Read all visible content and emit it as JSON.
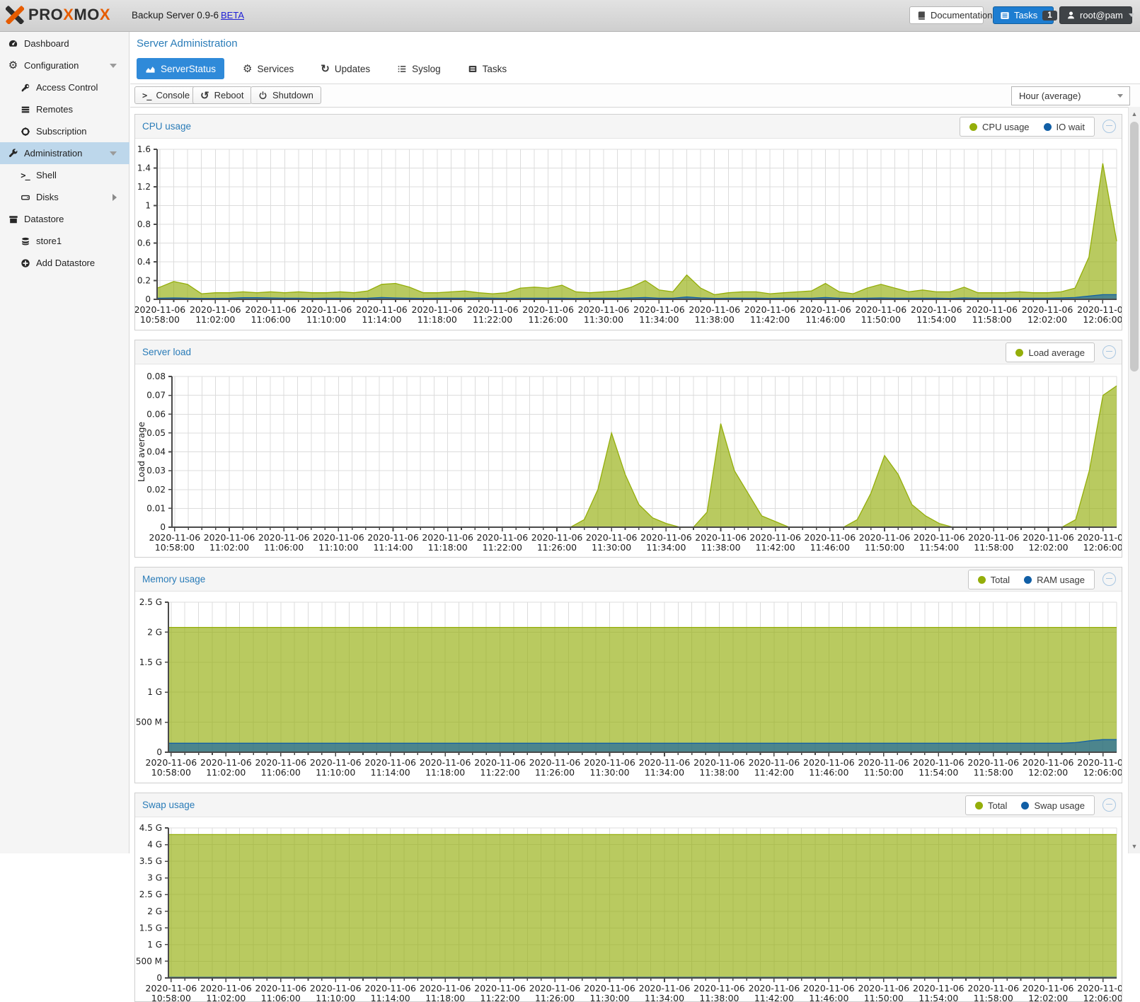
{
  "header": {
    "brand": "PROXMOX",
    "product": "Backup Server 0.9-6",
    "beta_link": "BETA",
    "documentation_label": "Documentation",
    "tasks_label": "Tasks",
    "tasks_badge": "1",
    "user_label": "root@pam"
  },
  "sidebar": {
    "items": [
      {
        "label": "Dashboard",
        "icon": "dashboard-icon",
        "level": 0
      },
      {
        "label": "Configuration",
        "icon": "gear-icon",
        "level": 0,
        "expand": "down"
      },
      {
        "label": "Access Control",
        "icon": "key-icon",
        "level": 1
      },
      {
        "label": "Remotes",
        "icon": "remotes-icon",
        "level": 1
      },
      {
        "label": "Subscription",
        "icon": "lifering-icon",
        "level": 1
      },
      {
        "label": "Administration",
        "icon": "wrench-icon",
        "level": 0,
        "expand": "down",
        "selected": true
      },
      {
        "label": "Shell",
        "icon": "terminal-icon",
        "level": 1
      },
      {
        "label": "Disks",
        "icon": "harddisk-icon",
        "level": 1,
        "expand": "right"
      },
      {
        "label": "Datastore",
        "icon": "archive-icon",
        "level": 0
      },
      {
        "label": "store1",
        "icon": "database-icon",
        "level": 1
      },
      {
        "label": "Add Datastore",
        "icon": "plus-circle-icon",
        "level": 1
      }
    ]
  },
  "main": {
    "title": "Server Administration",
    "tabs": [
      {
        "label": "ServerStatus",
        "icon": "area-chart-icon",
        "active": true
      },
      {
        "label": "Services",
        "icon": "gear-icon"
      },
      {
        "label": "Updates",
        "icon": "refresh-icon"
      },
      {
        "label": "Syslog",
        "icon": "list-icon"
      },
      {
        "label": "Tasks",
        "icon": "tasks-icon"
      }
    ],
    "toolbar": {
      "console_label": "Console",
      "reboot_label": "Reboot",
      "shutdown_label": "Shutdown",
      "range_selected": "Hour (average)"
    }
  },
  "panels": [
    {
      "title": "CPU usage",
      "legend": [
        {
          "label": "CPU usage",
          "color": "#94ae0a"
        },
        {
          "label": "IO wait",
          "color": "#115fa6"
        }
      ]
    },
    {
      "title": "Server load",
      "legend": [
        {
          "label": "Load average",
          "color": "#94ae0a"
        }
      ]
    },
    {
      "title": "Memory usage",
      "legend": [
        {
          "label": "Total",
          "color": "#94ae0a"
        },
        {
          "label": "RAM usage",
          "color": "#115fa6"
        }
      ]
    },
    {
      "title": "Swap usage",
      "legend": [
        {
          "label": "Total",
          "color": "#94ae0a"
        },
        {
          "label": "Swap usage",
          "color": "#115fa6"
        }
      ]
    }
  ],
  "colors": {
    "series_green": "#94ae0a",
    "series_blue": "#115fa6",
    "title_blue": "#2a7cb8",
    "active_tab_blue": "#2f8ad9",
    "tasks_button_blue": "#1d7dd1",
    "selected_row_blue": "#bdd7eb",
    "brand_orange": "#e65c00"
  },
  "chart_data": [
    {
      "type": "area",
      "title": "CPU usage",
      "ylim": [
        0,
        1.6
      ],
      "ytick_values": [
        0,
        0.2,
        0.4,
        0.6,
        0.8,
        1,
        1.2,
        1.4,
        1.6
      ],
      "ytick_labels": [
        "0",
        "0.2",
        "0.4",
        "0.6",
        "0.8",
        "1",
        "1.2",
        "1.4",
        "1.6"
      ],
      "time_axis": {
        "date": "2020-11-06",
        "start": "10:57",
        "step_minutes": 1,
        "points": 71
      },
      "xtick_labels": [
        "10:58:00",
        "11:02:00",
        "11:06:00",
        "11:10:00",
        "11:14:00",
        "11:18:00",
        "11:22:00",
        "11:26:00",
        "11:30:00",
        "11:34:00",
        "11:38:00",
        "11:42:00",
        "11:46:00",
        "11:50:00",
        "11:54:00",
        "11:58:00",
        "12:02:00",
        "12:06:00"
      ],
      "series": [
        {
          "name": "CPU usage",
          "color": "#94ae0a",
          "values": [
            0.12,
            0.13,
            0.19,
            0.16,
            0.06,
            0.07,
            0.07,
            0.08,
            0.07,
            0.08,
            0.07,
            0.08,
            0.07,
            0.07,
            0.08,
            0.07,
            0.09,
            0.16,
            0.17,
            0.13,
            0.07,
            0.07,
            0.08,
            0.09,
            0.07,
            0.06,
            0.07,
            0.12,
            0.13,
            0.12,
            0.15,
            0.08,
            0.07,
            0.08,
            0.09,
            0.13,
            0.2,
            0.1,
            0.08,
            0.26,
            0.12,
            0.05,
            0.07,
            0.08,
            0.08,
            0.06,
            0.07,
            0.08,
            0.09,
            0.17,
            0.08,
            0.06,
            0.12,
            0.16,
            0.12,
            0.08,
            0.1,
            0.08,
            0.08,
            0.13,
            0.07,
            0.07,
            0.07,
            0.08,
            0.07,
            0.07,
            0.08,
            0.12,
            0.45,
            1.45,
            0.62
          ]
        },
        {
          "name": "IO wait",
          "color": "#115fa6",
          "values": [
            0.012,
            0.012,
            0.015,
            0.012,
            0.01,
            0.01,
            0.012,
            0.018,
            0.018,
            0.015,
            0.012,
            0.012,
            0.01,
            0.012,
            0.012,
            0.01,
            0.012,
            0.02,
            0.015,
            0.012,
            0.01,
            0.012,
            0.012,
            0.012,
            0.015,
            0.012,
            0.01,
            0.012,
            0.012,
            0.012,
            0.012,
            0.01,
            0.012,
            0.012,
            0.012,
            0.015,
            0.02,
            0.012,
            0.012,
            0.025,
            0.015,
            0.01,
            0.012,
            0.012,
            0.012,
            0.01,
            0.012,
            0.012,
            0.012,
            0.02,
            0.012,
            0.01,
            0.012,
            0.015,
            0.012,
            0.012,
            0.012,
            0.012,
            0.01,
            0.015,
            0.012,
            0.012,
            0.012,
            0.012,
            0.012,
            0.012,
            0.015,
            0.02,
            0.035,
            0.05,
            0.05
          ]
        }
      ]
    },
    {
      "type": "area",
      "title": "Server load",
      "ylabel": "Load average",
      "ylim": [
        0,
        0.08
      ],
      "ytick_values": [
        0,
        0.01,
        0.02,
        0.03,
        0.04,
        0.05,
        0.06,
        0.07,
        0.08
      ],
      "ytick_labels": [
        "0",
        "0.01",
        "0.02",
        "0.03",
        "0.04",
        "0.05",
        "0.06",
        "0.07",
        "0.08"
      ],
      "time_axis": {
        "date": "2020-11-06",
        "start": "10:57",
        "step_minutes": 1,
        "points": 71
      },
      "xtick_labels": [
        "10:58:00",
        "11:02:00",
        "11:06:00",
        "11:10:00",
        "11:14:00",
        "11:18:00",
        "11:22:00",
        "11:26:00",
        "11:30:00",
        "11:34:00",
        "11:38:00",
        "11:42:00",
        "11:46:00",
        "11:50:00",
        "11:54:00",
        "11:58:00",
        "12:02:00",
        "12:06:00"
      ],
      "series": [
        {
          "name": "Load average",
          "color": "#94ae0a",
          "values": [
            0,
            0,
            0,
            0,
            0,
            0,
            0,
            0,
            0,
            0,
            0,
            0,
            0,
            0,
            0,
            0,
            0,
            0,
            0,
            0,
            0,
            0,
            0,
            0,
            0,
            0,
            0,
            0,
            0,
            0,
            0,
            0.004,
            0.02,
            0.05,
            0.028,
            0.012,
            0.005,
            0.002,
            0,
            0,
            0.008,
            0.055,
            0.03,
            0.018,
            0.006,
            0.003,
            0,
            0,
            0,
            0,
            0,
            0.004,
            0.018,
            0.038,
            0.028,
            0.012,
            0.006,
            0.002,
            0,
            0,
            0,
            0,
            0,
            0,
            0,
            0,
            0,
            0.004,
            0.03,
            0.07,
            0.075
          ]
        }
      ]
    },
    {
      "type": "area",
      "title": "Memory usage",
      "unit": "GiB",
      "ylim": [
        0,
        2.5
      ],
      "ytick_values": [
        0,
        0.5,
        1,
        1.5,
        2,
        2.5
      ],
      "ytick_labels": [
        "0",
        "500 M",
        "1 G",
        "1.5 G",
        "2 G",
        "2.5 G"
      ],
      "time_axis": {
        "date": "2020-11-06",
        "start": "10:57",
        "step_minutes": 1,
        "points": 71
      },
      "xtick_labels": [
        "10:58:00",
        "11:02:00",
        "11:06:00",
        "11:10:00",
        "11:14:00",
        "11:18:00",
        "11:22:00",
        "11:26:00",
        "11:30:00",
        "11:34:00",
        "11:38:00",
        "11:42:00",
        "11:46:00",
        "11:50:00",
        "11:54:00",
        "11:58:00",
        "12:02:00",
        "12:06:00"
      ],
      "series": [
        {
          "name": "Total",
          "color": "#94ae0a",
          "constant": 2.08
        },
        {
          "name": "RAM usage",
          "color": "#115fa6",
          "base": 0.15,
          "tail": [
            0.16,
            0.19,
            0.21,
            0.21
          ]
        }
      ]
    },
    {
      "type": "area",
      "title": "Swap usage",
      "unit": "GiB",
      "ylim": [
        0,
        4.5
      ],
      "ytick_values": [
        0,
        0.5,
        1,
        1.5,
        2,
        2.5,
        3,
        3.5,
        4,
        4.5
      ],
      "ytick_labels": [
        "0",
        "500 M",
        "1 G",
        "1.5 G",
        "2 G",
        "2.5 G",
        "3 G",
        "3.5 G",
        "4 G",
        "4.5 G"
      ],
      "time_axis": {
        "date": "2020-11-06",
        "start": "10:57",
        "step_minutes": 1,
        "points": 71
      },
      "xtick_labels": [
        "10:58:00",
        "11:02:00",
        "11:06:00",
        "11:10:00",
        "11:14:00",
        "11:18:00",
        "11:22:00",
        "11:26:00",
        "11:30:00",
        "11:34:00",
        "11:38:00",
        "11:42:00",
        "11:46:00",
        "11:50:00",
        "11:54:00",
        "11:58:00",
        "12:02:00",
        "12:06:00"
      ],
      "series": [
        {
          "name": "Total",
          "color": "#94ae0a",
          "constant": 4.3
        },
        {
          "name": "Swap usage",
          "color": "#115fa6",
          "constant": 0.02
        }
      ]
    }
  ]
}
